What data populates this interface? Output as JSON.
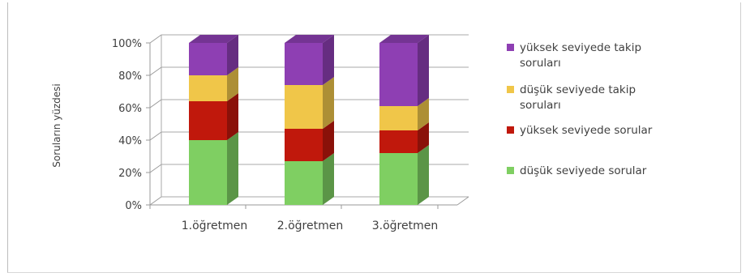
{
  "chart_data": {
    "type": "bar",
    "stacked": true,
    "percent_stacked": true,
    "three_d": true,
    "categories": [
      "1.öğretmen",
      "2.öğretmen",
      "3.öğretmen"
    ],
    "series": [
      {
        "name": "düşük seviyede sorular",
        "values": [
          40,
          27,
          32
        ],
        "color": "#7fcf62"
      },
      {
        "name": "yüksek seviyede sorular",
        "values": [
          24,
          20,
          14
        ],
        "color": "#c0180c"
      },
      {
        "name": "düşük seviyede takip soruları",
        "values": [
          16,
          27,
          15
        ],
        "color": "#f0c649"
      },
      {
        "name": "yüksek seviyede takip soruları",
        "values": [
          20,
          26,
          39
        ],
        "color": "#8e3fb3"
      }
    ],
    "legend_order": [
      3,
      2,
      1,
      0
    ],
    "ylabel": "Soruların yüzdesi",
    "xlabel": "",
    "title": "",
    "ylim": [
      0,
      100
    ],
    "yticks": [
      "0%",
      "20%",
      "40%",
      "60%",
      "80%",
      "100%"
    ],
    "grid": true,
    "legend_position": "right"
  }
}
